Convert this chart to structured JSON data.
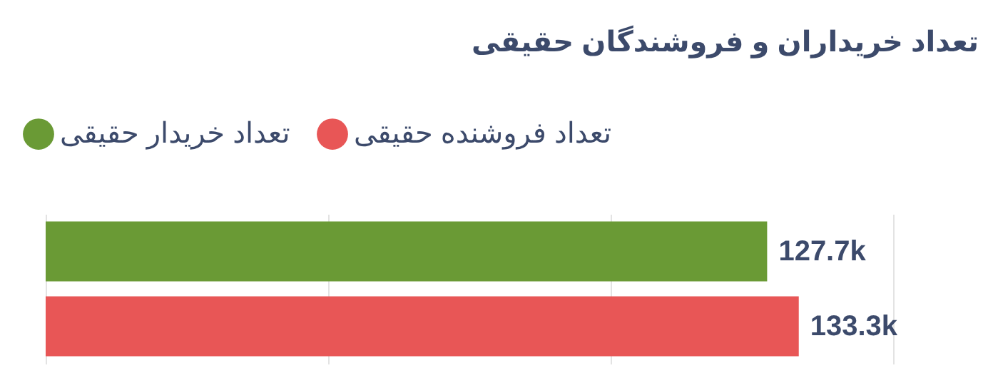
{
  "chart_data": {
    "type": "bar",
    "orientation": "horizontal",
    "title": "تعداد خریداران و فروشندگان حقیقی",
    "categories": [
      null
    ],
    "series": [
      {
        "name": "تعداد خریدار حقیقی",
        "color": "#6a9a35",
        "values": [
          127.7
        ],
        "value_labels": [
          "127.7k"
        ]
      },
      {
        "name": "تعداد فروشنده حقیقی",
        "color": "#e85656",
        "values": [
          133.3
        ],
        "value_labels": [
          "133.3k"
        ]
      }
    ],
    "xlim": [
      0,
      150
    ],
    "xticks": [
      0,
      50,
      100,
      150
    ],
    "tick_labels": false,
    "grid": "x",
    "legend": "top left"
  }
}
